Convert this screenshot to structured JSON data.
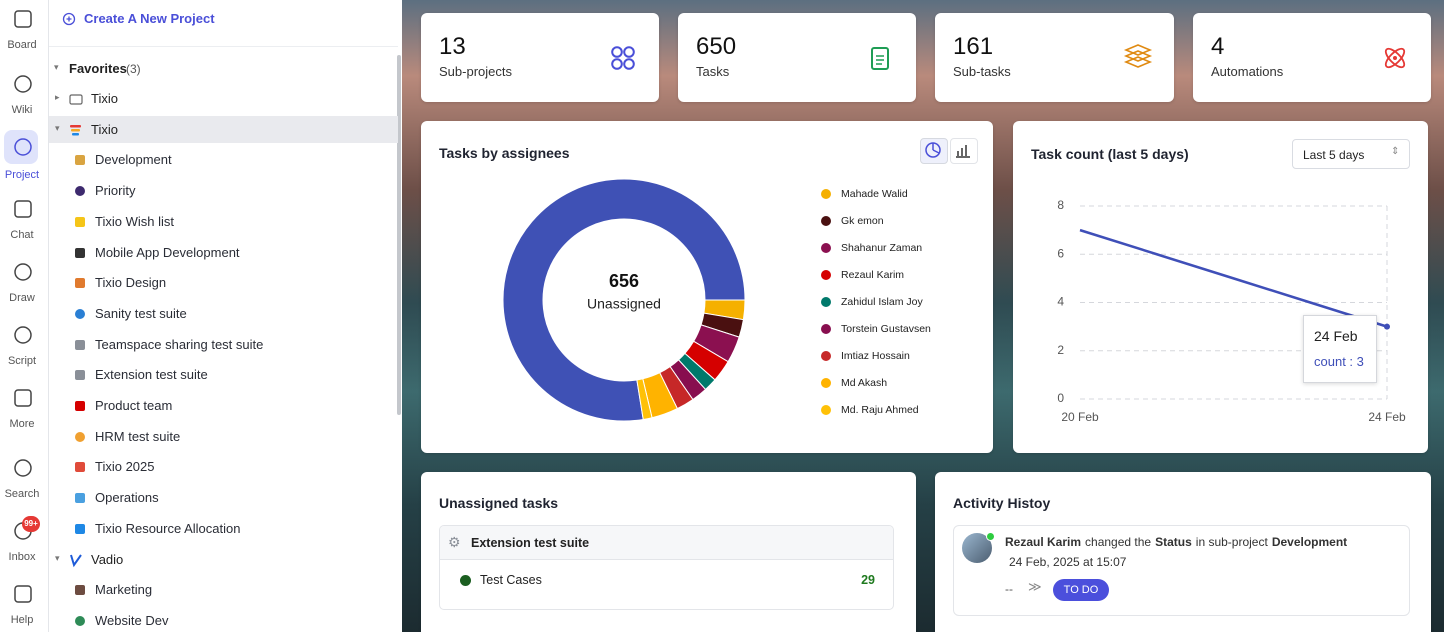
{
  "rail": {
    "items": [
      "Board",
      "Wiki",
      "Project",
      "Chat",
      "Draw",
      "Script",
      "More",
      "Search",
      "Inbox",
      "Help"
    ],
    "inbox_badge": "99+"
  },
  "sidebar": {
    "create": "Create A New Project",
    "favorites": {
      "label": "Favorites",
      "count": "(3)"
    },
    "projects": [
      {
        "name": "Tixio",
        "children": []
      },
      {
        "name": "Tixio",
        "children": [
          "Development",
          "Priority",
          "Tixio Wish list",
          "Mobile App Development",
          "Tixio Design",
          "Sanity test suite",
          "Teamspace sharing test suite",
          "Extension test suite",
          "Product team",
          "HRM test suite",
          "Tixio 2025",
          "Operations",
          "Tixio Resource Allocation"
        ]
      },
      {
        "name": "Vadio",
        "children": [
          "Marketing",
          "Website Dev"
        ]
      }
    ]
  },
  "stats": [
    {
      "value": 13,
      "label": "Sub-projects"
    },
    {
      "value": 650,
      "label": "Tasks"
    },
    {
      "value": 161,
      "label": "Sub-tasks"
    },
    {
      "value": 4,
      "label": "Automations"
    }
  ],
  "chart_data": [
    {
      "type": "pie",
      "title": "Tasks by assignees",
      "categories": [
        "Unassigned",
        "Mahade Walid",
        "Gk emon",
        "Shahanur Zaman",
        "Rezaul Karim",
        "Zahidul Islam Joy",
        "Torstein Gustavsen",
        "Imtiaz Hossain",
        "Md Akash",
        "Md. Raju Ahmed"
      ],
      "values": [
        656,
        22,
        20,
        30,
        25,
        15,
        18,
        20,
        30,
        10
      ],
      "colors": [
        "#3f51b5",
        "#f5b000",
        "#4a1010",
        "#8b1050",
        "#d50000",
        "#00796b",
        "#880e4f",
        "#c62828",
        "#ffb300",
        "#ffc107"
      ]
    },
    {
      "type": "line",
      "title": "Task count (last 5 days)",
      "range_select": "Last 5 days",
      "categories": [
        "20 Feb",
        null,
        null,
        null,
        "24 Feb"
      ],
      "series": [
        {
          "name": "count",
          "color": "#3f4fb8",
          "values": [
            7,
            6,
            5,
            4,
            3
          ]
        }
      ],
      "ylim": [
        0,
        8
      ],
      "yticks": [
        0,
        2,
        4,
        6,
        8
      ],
      "grid": true,
      "tooltip": {
        "title": "24 Feb",
        "text": "count : 3"
      }
    }
  ],
  "unassigned": {
    "title": "Unassigned tasks",
    "group": "Extension test suite",
    "rows": [
      {
        "label": "Test Cases",
        "count": 29
      }
    ]
  },
  "activity": {
    "title": "Activity Histoy",
    "entries": [
      {
        "user": "Rezaul Karim",
        "action": "changed the",
        "field": "Status",
        "context": "in sub-project",
        "target": "Development",
        "time": "24 Feb, 2025 at 15:07",
        "from": "--",
        "to": "TO DO"
      }
    ]
  }
}
